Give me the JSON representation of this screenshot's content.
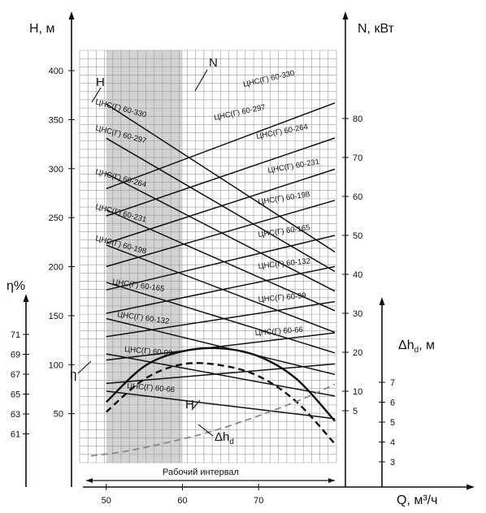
{
  "chart_data": {
    "type": "line",
    "title": "",
    "x_axis": {
      "label": "Q, м³/ч",
      "range": [
        48,
        80
      ],
      "ticks": [
        "50",
        "60",
        "70"
      ]
    },
    "y_axes": {
      "H": {
        "label": "H, м",
        "range": [
          0,
          420
        ],
        "ticks": [
          "50",
          "100",
          "150",
          "200",
          "250",
          "300",
          "350",
          "400"
        ]
      },
      "N": {
        "label": "N, кВт",
        "range": [
          -4,
          88
        ],
        "ticks": [
          "5",
          "10",
          "20",
          "30",
          "40",
          "50",
          "60",
          "70",
          "80"
        ]
      },
      "eta": {
        "label": "η%",
        "range": [
          53.5,
          71
        ],
        "ticks": [
          "61",
          "63",
          "65",
          "67",
          "69",
          "71"
        ]
      },
      "dh": {
        "label": "Δhd, м",
        "range": [
          2.5,
          7.5
        ],
        "ticks": [
          "3",
          "4",
          "5",
          "6",
          "7"
        ]
      }
    },
    "working_interval": {
      "label": "Рабочий интервал",
      "x_range": [
        50,
        60
      ]
    },
    "grid": true,
    "series_labels": {
      "H": "H",
      "N": "N",
      "eta": "η",
      "dh": "Δhd"
    },
    "H_series": [
      {
        "name": "ЦНС(Г) 60-330",
        "x": [
          50,
          80
        ],
        "y": [
          366,
          215
        ]
      },
      {
        "name": "ЦНС(Г) 60-297",
        "x": [
          50,
          80
        ],
        "y": [
          331,
          195
        ]
      },
      {
        "name": "ЦНС(Г) 60-264",
        "x": [
          50,
          80
        ],
        "y": [
          295,
          175
        ]
      },
      {
        "name": "ЦНС(Г) 60-231",
        "x": [
          50,
          80
        ],
        "y": [
          258,
          155
        ]
      },
      {
        "name": "ЦНС(Г) 60-198",
        "x": [
          50,
          80
        ],
        "y": [
          222,
          133
        ]
      },
      {
        "name": "ЦНС(Г) 60-165",
        "x": [
          50,
          80
        ],
        "y": [
          184,
          112
        ]
      },
      {
        "name": "ЦНС(Г) 60-132",
        "x": [
          50,
          80
        ],
        "y": [
          147,
          90
        ]
      },
      {
        "name": "ЦНС(Г) 60-99",
        "x": [
          50,
          80
        ],
        "y": [
          111,
          68
        ]
      },
      {
        "name": "ЦНС(Г) 60-66",
        "x": [
          50,
          80
        ],
        "y": [
          73,
          45
        ]
      }
    ],
    "N_series": [
      {
        "name": "ЦНС(Г) 60-330",
        "x": [
          50,
          80
        ],
        "y": [
          62,
          84
        ]
      },
      {
        "name": "ЦНС(Г) 60-297",
        "x": [
          50,
          80
        ],
        "y": [
          55,
          75
        ]
      },
      {
        "name": "ЦНС(Г) 60-264",
        "x": [
          50,
          80
        ],
        "y": [
          48,
          67
        ]
      },
      {
        "name": "ЦНС(Г) 60-231",
        "x": [
          50,
          80
        ],
        "y": [
          42,
          59
        ]
      },
      {
        "name": "ЦНС(Г) 60-198",
        "x": [
          50,
          80
        ],
        "y": [
          36,
          50
        ]
      },
      {
        "name": "ЦНС(Г) 60-165",
        "x": [
          50,
          80
        ],
        "y": [
          30,
          42
        ]
      },
      {
        "name": "ЦНС(Г) 60-132",
        "x": [
          50,
          80
        ],
        "y": [
          24,
          33
        ]
      },
      {
        "name": "ЦНС(Г) 60-99",
        "x": [
          50,
          80
        ],
        "y": [
          18,
          25
        ]
      },
      {
        "name": "ЦНС(Г) 60-66",
        "x": [
          50,
          80
        ],
        "y": [
          12,
          17
        ]
      }
    ],
    "eta_series": [
      {
        "x": [
          50,
          55,
          60,
          65,
          70,
          75,
          80
        ],
        "y": [
          64.2,
          67.8,
          69.3,
          69.6,
          68.8,
          66.5,
          62.3
        ]
      },
      {
        "x": [
          50,
          55,
          60,
          65,
          70,
          75,
          80
        ],
        "y": [
          63.2,
          66.5,
          68.0,
          67.9,
          66.8,
          64.2,
          60.0
        ]
      }
    ],
    "dh_series": {
      "x": [
        48,
        52,
        56,
        60,
        64,
        68,
        72,
        76,
        80
      ],
      "y": [
        3.3,
        3.5,
        3.8,
        4.15,
        4.55,
        5.05,
        5.6,
        6.2,
        6.9
      ]
    },
    "H_labels_left": [
      "ЦНС(Г) 60-330",
      "ЦНС(Г) 60-297",
      "ЦНС(Г) 60-264",
      "ЦНС(Г) 60-231",
      "ЦНС(Г) 60-198",
      "ЦНС(Г) 60-165",
      "ЦНС(Г) 60-132",
      "ЦНС(Г) 60-99",
      "ЦНС(Г) 60-66"
    ],
    "N_labels_right": [
      "ЦНС(Г) 60-330",
      "ЦНС(Г) 60-297",
      "ЦНС(Г) 60-264",
      "ЦНС(Г) 60-231",
      "ЦНС(Г) 60-198",
      "ЦНС(Г) 60-165",
      "ЦНС(Г) 60-132",
      "ЦНС(Г) 60-99",
      "ЦНС(Г) 60-66"
    ]
  }
}
